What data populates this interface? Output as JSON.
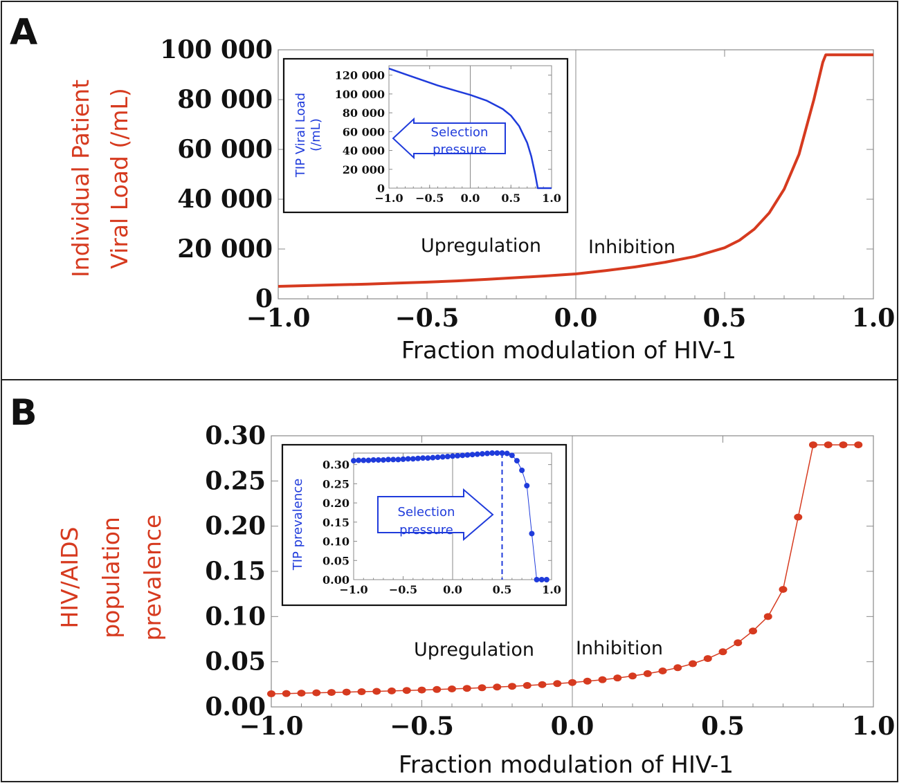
{
  "panels": [
    {
      "letter": "A",
      "region_left": "Upregulation",
      "region_right": "Inhibition"
    },
    {
      "letter": "B",
      "region_left": "Upregulation",
      "region_right": "Inhibition"
    }
  ],
  "chart_data": [
    {
      "panel": "A",
      "type": "line",
      "xlabel": "Fraction modulation of HIV-1",
      "ylabel": [
        "Individual Patient",
        "Viral Load (/mL)"
      ],
      "xlim": [
        -1.0,
        1.0
      ],
      "ylim": [
        0,
        100000
      ],
      "xticks": [
        "−1.0",
        "−0.5",
        "0.0",
        "0.5",
        "1.0"
      ],
      "yticks": [
        "0",
        "20 000",
        "40 000",
        "60 000",
        "80 000",
        "100 000"
      ],
      "color": "#d63a1f",
      "x": [
        -1.0,
        -0.9,
        -0.8,
        -0.7,
        -0.6,
        -0.5,
        -0.4,
        -0.3,
        -0.2,
        -0.1,
        0.0,
        0.1,
        0.2,
        0.3,
        0.4,
        0.5,
        0.55,
        0.6,
        0.65,
        0.7,
        0.75,
        0.8,
        0.83,
        0.84,
        0.9,
        1.0
      ],
      "y": [
        5000,
        5300,
        5600,
        5900,
        6300,
        6700,
        7200,
        7800,
        8500,
        9200,
        10000,
        11300,
        12800,
        14700,
        17000,
        20500,
        23500,
        28000,
        34500,
        44000,
        58000,
        80000,
        95000,
        98000,
        98000,
        98000
      ]
    },
    {
      "panel": "A-inset",
      "type": "line",
      "ylabel": [
        "TIP Viral Load",
        "(/mL)"
      ],
      "xlim": [
        -1.0,
        1.0
      ],
      "ylim": [
        0,
        130000
      ],
      "xticks": [
        "−1.0",
        "−0.5",
        "0.0",
        "0.5",
        "1.0"
      ],
      "yticks": [
        "0",
        "20 000",
        "40 000",
        "60 000",
        "80 000",
        "100 000",
        "120 000"
      ],
      "color": "#1f3bdb",
      "x": [
        -1.0,
        -0.8,
        -0.6,
        -0.4,
        -0.2,
        0.0,
        0.2,
        0.4,
        0.5,
        0.6,
        0.7,
        0.75,
        0.8,
        0.83,
        0.84,
        1.0
      ],
      "y": [
        127000,
        121000,
        115000,
        109000,
        104000,
        99000,
        93000,
        84000,
        77000,
        66000,
        48000,
        34000,
        14000,
        0,
        0,
        0
      ],
      "annotation": [
        "Selection",
        "pressure"
      ]
    },
    {
      "panel": "B",
      "type": "scatter",
      "xlabel": "Fraction modulation of HIV-1",
      "ylabel": [
        "HIV/AIDS",
        "population",
        "prevalence"
      ],
      "xlim": [
        -1.0,
        1.0
      ],
      "ylim": [
        0,
        0.3
      ],
      "xticks": [
        "−1.0",
        "−0.5",
        "0.0",
        "0.5",
        "1.0"
      ],
      "yticks": [
        "0.00",
        "0.05",
        "0.10",
        "0.15",
        "0.20",
        "0.25",
        "0.30"
      ],
      "color": "#d63a1f",
      "x": [
        -1.0,
        -0.95,
        -0.9,
        -0.85,
        -0.8,
        -0.75,
        -0.7,
        -0.65,
        -0.6,
        -0.55,
        -0.5,
        -0.45,
        -0.4,
        -0.35,
        -0.3,
        -0.25,
        -0.2,
        -0.15,
        -0.1,
        -0.05,
        0.0,
        0.05,
        0.1,
        0.15,
        0.2,
        0.25,
        0.3,
        0.35,
        0.4,
        0.45,
        0.5,
        0.55,
        0.6,
        0.65,
        0.7,
        0.75,
        0.8,
        0.85,
        0.9,
        0.95
      ],
      "y": [
        0.0145,
        0.0148,
        0.0152,
        0.0156,
        0.016,
        0.0164,
        0.0168,
        0.0172,
        0.0177,
        0.0182,
        0.0187,
        0.0193,
        0.0199,
        0.0205,
        0.0212,
        0.022,
        0.0228,
        0.0237,
        0.0247,
        0.0258,
        0.027,
        0.0285,
        0.0301,
        0.032,
        0.0342,
        0.0368,
        0.0398,
        0.0434,
        0.0478,
        0.0535,
        0.061,
        0.071,
        0.084,
        0.1,
        0.13,
        0.21,
        0.29,
        0.29,
        0.29,
        0.29
      ]
    },
    {
      "panel": "B-inset",
      "type": "scatter",
      "ylabel": [
        "TIP prevalence"
      ],
      "xlim": [
        -1.0,
        1.0
      ],
      "ylim": [
        0,
        0.33
      ],
      "xticks": [
        "−1.0",
        "−0.5",
        "0.0",
        "0.5",
        "1.0"
      ],
      "yticks": [
        "0.00",
        "0.05",
        "0.10",
        "0.15",
        "0.20",
        "0.25",
        "0.30"
      ],
      "color": "#1f3bdb",
      "dashed_x": 0.5,
      "x": [
        -1.0,
        -0.95,
        -0.9,
        -0.85,
        -0.8,
        -0.75,
        -0.7,
        -0.65,
        -0.6,
        -0.55,
        -0.5,
        -0.45,
        -0.4,
        -0.35,
        -0.3,
        -0.25,
        -0.2,
        -0.15,
        -0.1,
        -0.05,
        0.0,
        0.05,
        0.1,
        0.15,
        0.2,
        0.25,
        0.3,
        0.35,
        0.4,
        0.45,
        0.5,
        0.55,
        0.6,
        0.65,
        0.7,
        0.75,
        0.8,
        0.85,
        0.9,
        0.95
      ],
      "y": [
        0.31,
        0.311,
        0.311,
        0.311,
        0.312,
        0.312,
        0.312,
        0.313,
        0.313,
        0.313,
        0.314,
        0.315,
        0.315,
        0.316,
        0.317,
        0.317,
        0.318,
        0.319,
        0.32,
        0.321,
        0.322,
        0.323,
        0.324,
        0.325,
        0.326,
        0.327,
        0.328,
        0.329,
        0.33,
        0.33,
        0.33,
        0.329,
        0.324,
        0.31,
        0.285,
        0.245,
        0.12,
        0.0,
        0.0,
        0.0
      ],
      "annotation": [
        "Selection",
        "pressure"
      ]
    }
  ]
}
